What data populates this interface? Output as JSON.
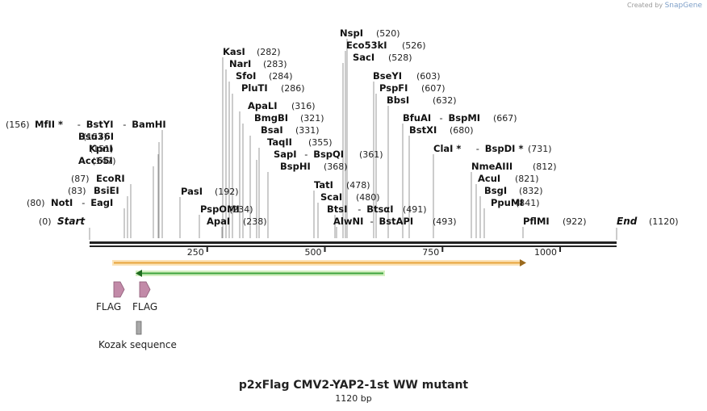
{
  "credit": {
    "prefix": "Created by",
    "brand": "SnapGene"
  },
  "title": "p2xFlag CMV2-YAP2-1st WW mutant",
  "length_label": "1120 bp",
  "ends": {
    "start_label": "Start",
    "start_pos": "(0)",
    "end_label": "End",
    "end_pos": "(1120)"
  },
  "ticks": [
    "250",
    "500",
    "750",
    "1000"
  ],
  "sites": [
    {
      "label": "MfII *",
      "pos": "(156)"
    },
    {
      "label": "BstYI",
      "pos": ""
    },
    {
      "label": "BamHI",
      "pos": ""
    },
    {
      "label": "Bsu36I",
      "pos": "(152)"
    },
    {
      "label": "KpnI",
      "pos": "(151)"
    },
    {
      "label": "Acc65I",
      "pos": "(147)"
    },
    {
      "label": "EcoRI",
      "pos": "(87)"
    },
    {
      "label": "BsiEI",
      "pos": "(83)"
    },
    {
      "label": "NotI",
      "pos": "(80)"
    },
    {
      "label": "EagI",
      "pos": ""
    },
    {
      "label": "PasI",
      "pos": "(192)"
    },
    {
      "label": "PspOMI",
      "pos": "(234)"
    },
    {
      "label": "ApaI",
      "pos": "(238)"
    },
    {
      "label": "KasI",
      "pos": "(282)"
    },
    {
      "label": "NarI",
      "pos": "(283)"
    },
    {
      "label": "SfoI",
      "pos": "(284)"
    },
    {
      "label": "PluTI",
      "pos": "(286)"
    },
    {
      "label": "ApaLI",
      "pos": "(316)"
    },
    {
      "label": "BmgBI",
      "pos": "(321)"
    },
    {
      "label": "BsaI",
      "pos": "(331)"
    },
    {
      "label": "TaqII",
      "pos": "(355)"
    },
    {
      "label": "SapI",
      "pos": ""
    },
    {
      "label": "BspQI",
      "pos": "(361)"
    },
    {
      "label": "BspHI",
      "pos": "(368)"
    },
    {
      "label": "NspI",
      "pos": "(520)"
    },
    {
      "label": "Eco53kI",
      "pos": "(526)"
    },
    {
      "label": "SacI",
      "pos": "(528)"
    },
    {
      "label": "TatI",
      "pos": "(478)"
    },
    {
      "label": "ScaI",
      "pos": "(480)"
    },
    {
      "label": "BtsI",
      "pos": ""
    },
    {
      "label": "BtsαI",
      "pos": "(491)"
    },
    {
      "label": "AlwNI",
      "pos": ""
    },
    {
      "label": "BstAPI",
      "pos": "(493)"
    },
    {
      "label": "BseYI",
      "pos": "(603)"
    },
    {
      "label": "PspFI",
      "pos": "(607)"
    },
    {
      "label": "BbsI",
      "pos": "(632)"
    },
    {
      "label": "BfuAI",
      "pos": ""
    },
    {
      "label": "BspMI",
      "pos": "(667)"
    },
    {
      "label": "BstXI",
      "pos": "(680)"
    },
    {
      "label": "ClaI *",
      "pos": ""
    },
    {
      "label": "BspDI *",
      "pos": "(731)"
    },
    {
      "label": "NmeAIII",
      "pos": "(812)"
    },
    {
      "label": "AcuI",
      "pos": "(821)"
    },
    {
      "label": "BsgI",
      "pos": "(832)"
    },
    {
      "label": "PpuMI",
      "pos": "(841)"
    },
    {
      "label": "PflMI",
      "pos": "(922)"
    }
  ],
  "features": [
    {
      "label": "FLAG",
      "type": "CDS",
      "color": "#c28aa8"
    },
    {
      "label": "FLAG",
      "type": "CDS",
      "color": "#c28aa8"
    },
    {
      "label": "Kozak sequence",
      "type": "regulatory",
      "color": "#a8a8a8"
    }
  ],
  "orfs": [
    {
      "name": "orf-forward",
      "color": "#e8a43c"
    },
    {
      "name": "orf-reverse",
      "color": "#3da33d"
    }
  ]
}
